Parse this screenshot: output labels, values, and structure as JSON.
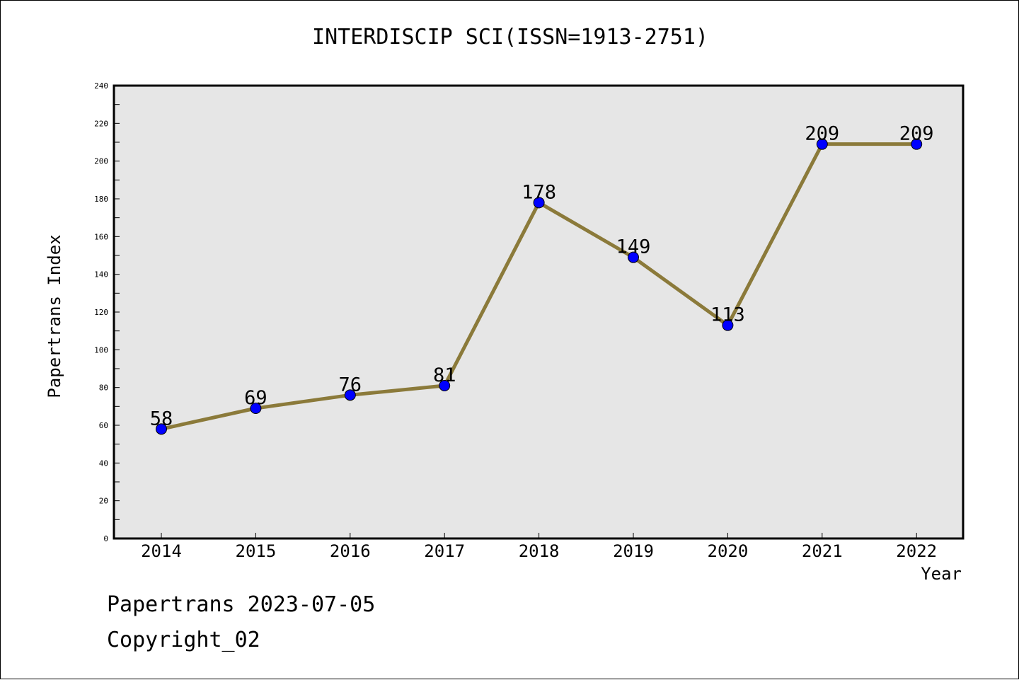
{
  "title": "INTERDISCIP SCI(ISSN=1913-2751)",
  "footer": {
    "line1": "Papertrans 2023-07-05",
    "line2": "Copyright_02"
  },
  "colors": {
    "plot_background": "#e6e6e6",
    "line": "#8b7a3a",
    "marker": "#0000ff"
  },
  "chart_data": {
    "type": "line",
    "title": "INTERDISCIP SCI(ISSN=1913-2751)",
    "xlabel": "Year",
    "ylabel": "Papertrans Index",
    "x": [
      "2014",
      "2015",
      "2016",
      "2017",
      "2018",
      "2019",
      "2020",
      "2021",
      "2022"
    ],
    "series": [
      {
        "values": [
          58,
          69,
          76,
          81,
          178,
          149,
          113,
          209,
          209
        ]
      }
    ],
    "data_labels": [
      "58",
      "69",
      "76",
      "81",
      "178",
      "149",
      "113",
      "209",
      "209"
    ],
    "ylim": [
      0,
      240
    ],
    "yticks": [
      0,
      20,
      40,
      60,
      80,
      100,
      120,
      140,
      160,
      180,
      200,
      220,
      240
    ],
    "grid": false,
    "legend": "none"
  }
}
